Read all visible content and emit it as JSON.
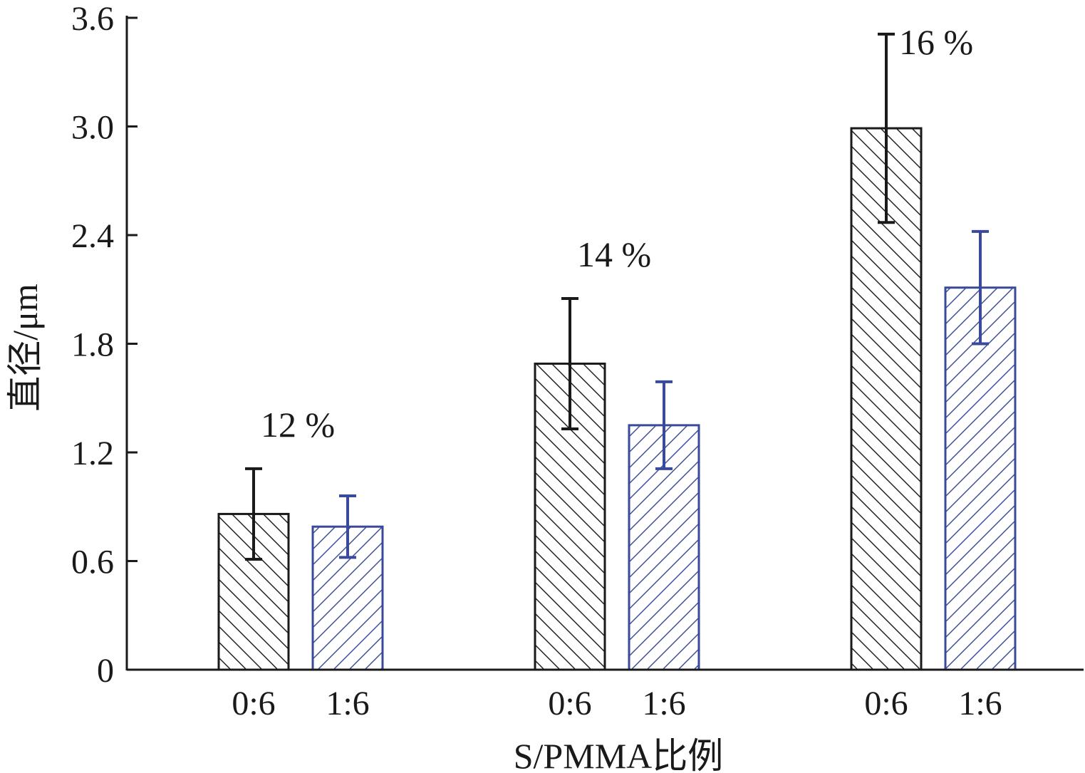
{
  "chart_data": {
    "type": "bar",
    "xlabel": "S/PMMA比例",
    "ylabel": "直径/μm",
    "ylim": [
      0,
      3.6
    ],
    "yticks": [
      0,
      0.6,
      1.2,
      1.8,
      2.4,
      3.0,
      3.6
    ],
    "ytick_labels": [
      "0",
      "0.6",
      "1.2",
      "1.8",
      "2.4",
      "3.0",
      "3.6"
    ],
    "grid": false,
    "groups": [
      {
        "label": "12 %",
        "bars": [
          {
            "category": "0:6",
            "value": 0.86,
            "error": 0.25,
            "color": "#1a1a1a",
            "hatch": "backslash"
          },
          {
            "category": "1:6",
            "value": 0.79,
            "error": 0.17,
            "color": "#3a4a9a",
            "hatch": "slash"
          }
        ]
      },
      {
        "label": "14 %",
        "bars": [
          {
            "category": "0:6",
            "value": 1.69,
            "error": 0.36,
            "color": "#1a1a1a",
            "hatch": "backslash"
          },
          {
            "category": "1:6",
            "value": 1.35,
            "error": 0.24,
            "color": "#3a4a9a",
            "hatch": "slash"
          }
        ]
      },
      {
        "label": "16 %",
        "bars": [
          {
            "category": "0:6",
            "value": 2.99,
            "error": 0.52,
            "color": "#1a1a1a",
            "hatch": "backslash"
          },
          {
            "category": "1:6",
            "value": 2.11,
            "error": 0.31,
            "color": "#3a4a9a",
            "hatch": "slash"
          }
        ]
      }
    ]
  }
}
